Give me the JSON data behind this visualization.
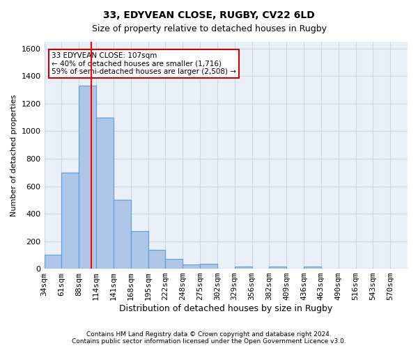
{
  "title1": "33, EDYVEAN CLOSE, RUGBY, CV22 6LD",
  "title2": "Size of property relative to detached houses in Rugby",
  "xlabel": "Distribution of detached houses by size in Rugby",
  "ylabel": "Number of detached properties",
  "footer": "Contains HM Land Registry data © Crown copyright and database right 2024.\nContains public sector information licensed under the Open Government Licence v3.0.",
  "bin_labels": [
    "34sqm",
    "61sqm",
    "88sqm",
    "114sqm",
    "141sqm",
    "168sqm",
    "195sqm",
    "222sqm",
    "248sqm",
    "275sqm",
    "302sqm",
    "329sqm",
    "356sqm",
    "382sqm",
    "409sqm",
    "436sqm",
    "463sqm",
    "490sqm",
    "516sqm",
    "543sqm",
    "570sqm"
  ],
  "bar_values": [
    100,
    700,
    1330,
    1100,
    500,
    275,
    135,
    70,
    30,
    35,
    0,
    15,
    0,
    15,
    0,
    15,
    0,
    0,
    0,
    0,
    0
  ],
  "bar_color": "#aec6e8",
  "bar_edge_color": "#5a9fd4",
  "grid_color": "#c8d8e8",
  "bg_color": "#eaf0f8",
  "red_line_x": 2.73,
  "annotation_text": "33 EDYVEAN CLOSE: 107sqm\n← 40% of detached houses are smaller (1,716)\n59% of semi-detached houses are larger (2,508) →",
  "annotation_box_color": "#ffffff",
  "annotation_box_edge": "#cc0000",
  "ylim": [
    0,
    1650
  ],
  "yticks": [
    0,
    200,
    400,
    600,
    800,
    1000,
    1200,
    1400,
    1600
  ]
}
